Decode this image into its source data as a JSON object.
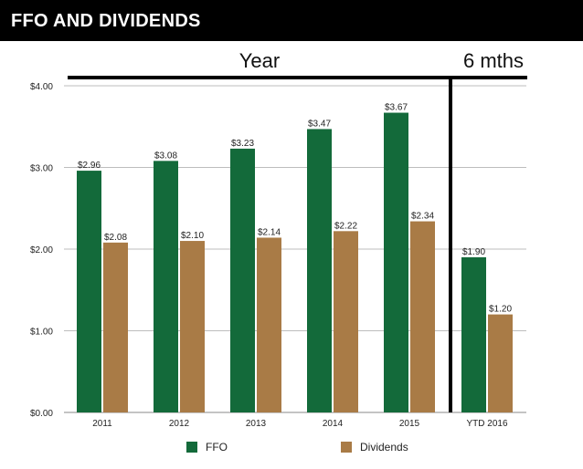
{
  "header": {
    "title": "FFO AND DIVIDENDS"
  },
  "periods": [
    {
      "label": "Year"
    },
    {
      "label": "6 mths"
    }
  ],
  "colors": {
    "ffo": "#136a3a",
    "dividends": "#a97b46",
    "header_bg": "#000000"
  },
  "chart_data": {
    "type": "bar",
    "title": "FFO AND DIVIDENDS",
    "categories": [
      "2011",
      "2012",
      "2013",
      "2014",
      "2015",
      "YTD 2016"
    ],
    "series": [
      {
        "name": "FFO",
        "values": [
          2.96,
          3.08,
          3.23,
          3.47,
          3.67,
          1.9
        ],
        "labels": [
          "$2.96",
          "$3.08",
          "$3.23",
          "$3.47",
          "$3.67",
          "$1.90"
        ]
      },
      {
        "name": "Dividends",
        "values": [
          2.08,
          2.1,
          2.14,
          2.22,
          2.34,
          1.2
        ],
        "labels": [
          "$2.08",
          "$2.10",
          "$2.14",
          "$2.22",
          "$2.34",
          "$1.20"
        ]
      }
    ],
    "ylim": [
      0,
      4
    ],
    "yticks": [
      0,
      1,
      2,
      3,
      4
    ],
    "ytick_labels": [
      "$0.00",
      "$1.00",
      "$2.00",
      "$3.00",
      "$4.00"
    ],
    "grid": true,
    "legend_position": "bottom"
  }
}
